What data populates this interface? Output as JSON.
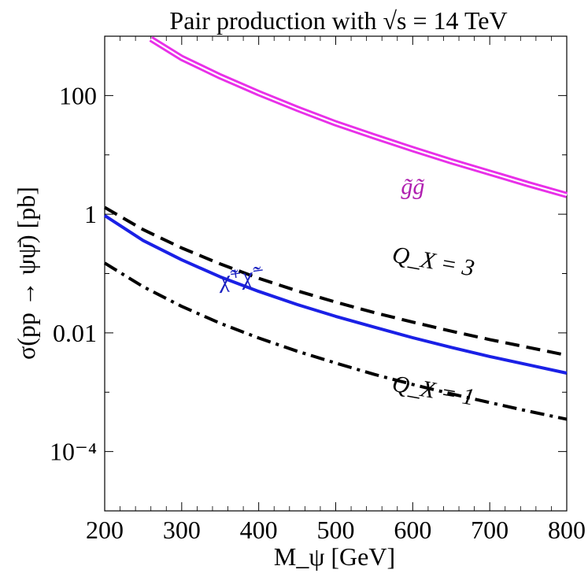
{
  "chart_data": {
    "type": "line",
    "title": "Pair production with √s = 14 TeV",
    "xlabel": "M_ψ  [GeV]",
    "ylabel": "σ(pp → ψψ̄)  [pb]",
    "x_scale": "linear",
    "y_scale": "log",
    "xlim": [
      200,
      800
    ],
    "ylim": [
      1e-05,
      1000
    ],
    "x_ticks": [
      200,
      300,
      400,
      500,
      600,
      700,
      800
    ],
    "y_ticks": [
      {
        "value": 100,
        "label": "100"
      },
      {
        "value": 1,
        "label": "1"
      },
      {
        "value": 0.01,
        "label": "0.01"
      },
      {
        "value": 0.0001,
        "label": "10⁻⁴"
      }
    ],
    "grid": false,
    "series": [
      {
        "name": "g̃g̃",
        "color": "#e830e8",
        "style": "double",
        "x": [
          260,
          300,
          350,
          400,
          450,
          500,
          550,
          600,
          650,
          700,
          750,
          800
        ],
        "y": [
          900,
          430,
          210,
          110,
          60,
          34,
          20.5,
          12.5,
          7.8,
          5.0,
          3.2,
          2.1
        ]
      },
      {
        "name": "χ̃⁺χ̃⁻",
        "color": "#1a20e6",
        "style": "solid",
        "x": [
          200,
          250,
          300,
          350,
          400,
          450,
          500,
          550,
          600,
          650,
          700,
          750,
          800
        ],
        "y": [
          0.95,
          0.36,
          0.17,
          0.088,
          0.05,
          0.03,
          0.019,
          0.0125,
          0.0083,
          0.0057,
          0.004,
          0.0029,
          0.0021
        ]
      },
      {
        "name": "Q_X = 3",
        "color": "#000000",
        "style": "dashed",
        "x": [
          200,
          250,
          300,
          350,
          400,
          450,
          500,
          550,
          600,
          650,
          700,
          750,
          800
        ],
        "y": [
          1.3,
          0.55,
          0.27,
          0.145,
          0.083,
          0.051,
          0.033,
          0.022,
          0.0152,
          0.0107,
          0.0077,
          0.0057,
          0.0042
        ]
      },
      {
        "name": "Q_X = 1",
        "color": "#000000",
        "style": "dashdot",
        "x": [
          200,
          250,
          300,
          350,
          400,
          450,
          500,
          550,
          600,
          650,
          700,
          750,
          800
        ],
        "y": [
          0.15,
          0.06,
          0.028,
          0.0145,
          0.0082,
          0.0049,
          0.0031,
          0.002,
          0.00135,
          0.00094,
          0.00067,
          0.00048,
          0.00035
        ]
      }
    ],
    "annotations": [
      {
        "text": "g̃g̃",
        "color": "#b01fb0",
        "x": 600,
        "y": 2.2
      },
      {
        "text": "χ̃⁺χ̃⁻",
        "color": "#1a20c0",
        "x": 380,
        "y": 0.065
      },
      {
        "text": "Q_X = 3",
        "color": "#000000",
        "x": 625,
        "y": 0.12
      },
      {
        "text": "Q_X = 1",
        "color": "#000000",
        "x": 625,
        "y": 0.0008
      }
    ]
  }
}
